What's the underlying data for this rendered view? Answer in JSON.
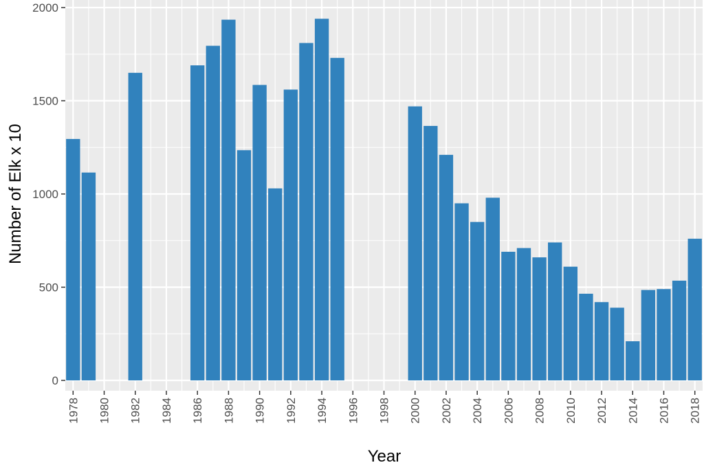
{
  "chart_data": {
    "type": "bar",
    "title": "",
    "xlabel": "Year",
    "ylabel": "Number of Elk x 10",
    "ylim": [
      0,
      2000
    ],
    "yticks": [
      0,
      500,
      1000,
      1500,
      2000
    ],
    "xlim": [
      1977.5,
      2018.5
    ],
    "xticks": [
      1978,
      1980,
      1982,
      1984,
      1986,
      1988,
      1990,
      1992,
      1994,
      1996,
      1998,
      2000,
      2002,
      2004,
      2006,
      2008,
      2010,
      2012,
      2014,
      2016,
      2018
    ],
    "x_tick_label_rotation": -90,
    "grid": true,
    "colors": {
      "bar": "#3182bd",
      "panel": "#ebebeb",
      "grid": "#ffffff"
    },
    "x": [
      1978,
      1979,
      1982,
      1986,
      1987,
      1988,
      1989,
      1990,
      1991,
      1992,
      1993,
      1994,
      1995,
      2000,
      2001,
      2002,
      2003,
      2004,
      2005,
      2006,
      2007,
      2008,
      2009,
      2010,
      2011,
      2012,
      2013,
      2014,
      2015,
      2016,
      2017,
      2018
    ],
    "values": [
      1295,
      1115,
      1650,
      1690,
      1795,
      1935,
      1235,
      1585,
      1030,
      1560,
      1810,
      1940,
      1730,
      1470,
      1365,
      1210,
      950,
      850,
      980,
      690,
      710,
      660,
      740,
      610,
      465,
      420,
      390,
      210,
      485,
      490,
      535,
      760
    ]
  }
}
